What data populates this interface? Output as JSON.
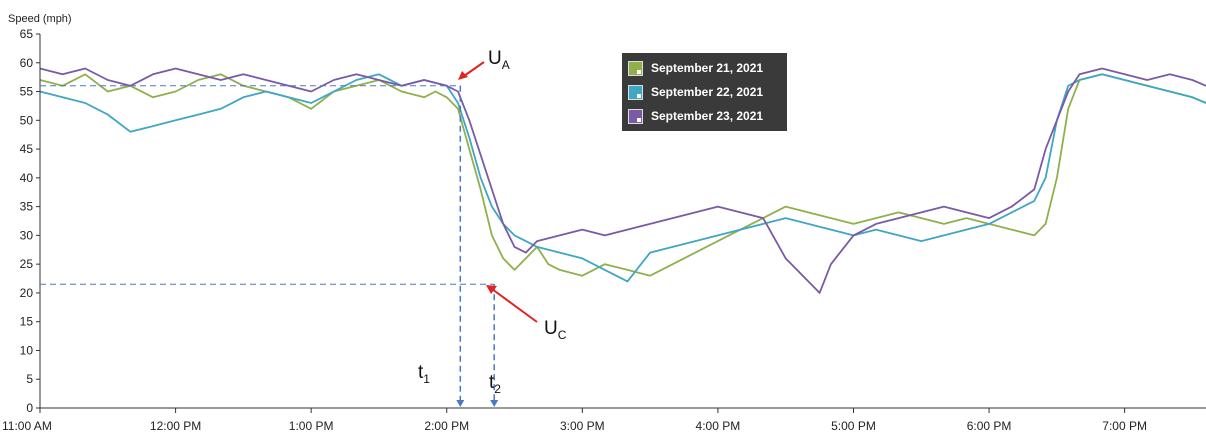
{
  "chart_data": {
    "type": "line",
    "ylabel": "Speed (mph)",
    "xlabel": "",
    "title": "",
    "ylim": [
      0,
      65
    ],
    "xlim": [
      "11:00 AM",
      "7:56 PM"
    ],
    "y_ticks": [
      "0",
      "5",
      "10",
      "15",
      "20",
      "25",
      "30",
      "35",
      "40",
      "45",
      "50",
      "55",
      "60",
      "65"
    ],
    "x_ticks": [
      {
        "label": "11:00 AM",
        "t": 0
      },
      {
        "label": "12:00 PM",
        "t": 60
      },
      {
        "label": "1:00 PM",
        "t": 120
      },
      {
        "label": "2:00 PM",
        "t": 180
      },
      {
        "label": "3:00 PM",
        "t": 240
      },
      {
        "label": "4:00 PM",
        "t": 300
      },
      {
        "label": "5:00 PM",
        "t": 360
      },
      {
        "label": "6:00 PM",
        "t": 420
      },
      {
        "label": "7:00 PM",
        "t": 480
      }
    ],
    "grid": false,
    "legend_position": "top-center",
    "series": [
      {
        "name": "September 21, 2021",
        "color": "#8fb04c",
        "points": [
          [
            0,
            57
          ],
          [
            10,
            56
          ],
          [
            20,
            58
          ],
          [
            30,
            55
          ],
          [
            40,
            56
          ],
          [
            50,
            54
          ],
          [
            60,
            55
          ],
          [
            70,
            57
          ],
          [
            80,
            58
          ],
          [
            90,
            56
          ],
          [
            100,
            55
          ],
          [
            110,
            54
          ],
          [
            120,
            52
          ],
          [
            130,
            55
          ],
          [
            140,
            56
          ],
          [
            150,
            57
          ],
          [
            160,
            55
          ],
          [
            170,
            54
          ],
          [
            175,
            55
          ],
          [
            180,
            54
          ],
          [
            185,
            52
          ],
          [
            190,
            45
          ],
          [
            195,
            38
          ],
          [
            200,
            30
          ],
          [
            205,
            26
          ],
          [
            210,
            24
          ],
          [
            215,
            26
          ],
          [
            220,
            28
          ],
          [
            225,
            25
          ],
          [
            230,
            24
          ],
          [
            240,
            23
          ],
          [
            250,
            25
          ],
          [
            260,
            24
          ],
          [
            270,
            23
          ],
          [
            280,
            25
          ],
          [
            290,
            27
          ],
          [
            300,
            29
          ],
          [
            310,
            31
          ],
          [
            320,
            33
          ],
          [
            330,
            35
          ],
          [
            340,
            34
          ],
          [
            350,
            33
          ],
          [
            360,
            32
          ],
          [
            370,
            33
          ],
          [
            380,
            34
          ],
          [
            390,
            33
          ],
          [
            400,
            32
          ],
          [
            410,
            33
          ],
          [
            420,
            32
          ],
          [
            430,
            31
          ],
          [
            440,
            30
          ],
          [
            445,
            32
          ],
          [
            450,
            40
          ],
          [
            455,
            52
          ],
          [
            460,
            57
          ],
          [
            470,
            58
          ],
          [
            480,
            57
          ],
          [
            490,
            56
          ],
          [
            500,
            55
          ],
          [
            510,
            54
          ],
          [
            516,
            53
          ]
        ]
      },
      {
        "name": "September 22, 2021",
        "color": "#3fa6c4",
        "points": [
          [
            0,
            55
          ],
          [
            10,
            54
          ],
          [
            20,
            53
          ],
          [
            30,
            51
          ],
          [
            40,
            48
          ],
          [
            50,
            49
          ],
          [
            60,
            50
          ],
          [
            70,
            51
          ],
          [
            80,
            52
          ],
          [
            90,
            54
          ],
          [
            100,
            55
          ],
          [
            110,
            54
          ],
          [
            120,
            53
          ],
          [
            130,
            55
          ],
          [
            140,
            57
          ],
          [
            150,
            58
          ],
          [
            160,
            56
          ],
          [
            170,
            57
          ],
          [
            180,
            56
          ],
          [
            185,
            53
          ],
          [
            190,
            47
          ],
          [
            195,
            40
          ],
          [
            200,
            35
          ],
          [
            205,
            32
          ],
          [
            210,
            30
          ],
          [
            215,
            29
          ],
          [
            220,
            28
          ],
          [
            230,
            27
          ],
          [
            240,
            26
          ],
          [
            250,
            24
          ],
          [
            260,
            22
          ],
          [
            270,
            27
          ],
          [
            280,
            28
          ],
          [
            290,
            29
          ],
          [
            300,
            30
          ],
          [
            310,
            31
          ],
          [
            320,
            32
          ],
          [
            330,
            33
          ],
          [
            340,
            32
          ],
          [
            350,
            31
          ],
          [
            360,
            30
          ],
          [
            370,
            31
          ],
          [
            380,
            30
          ],
          [
            390,
            29
          ],
          [
            400,
            30
          ],
          [
            410,
            31
          ],
          [
            420,
            32
          ],
          [
            430,
            34
          ],
          [
            440,
            36
          ],
          [
            445,
            40
          ],
          [
            450,
            50
          ],
          [
            455,
            56
          ],
          [
            460,
            57
          ],
          [
            470,
            58
          ],
          [
            480,
            57
          ],
          [
            490,
            56
          ],
          [
            500,
            55
          ],
          [
            510,
            54
          ],
          [
            516,
            53
          ]
        ]
      },
      {
        "name": "September 23, 2021",
        "color": "#7a5aa6",
        "points": [
          [
            0,
            59
          ],
          [
            10,
            58
          ],
          [
            20,
            59
          ],
          [
            30,
            57
          ],
          [
            40,
            56
          ],
          [
            50,
            58
          ],
          [
            60,
            59
          ],
          [
            70,
            58
          ],
          [
            80,
            57
          ],
          [
            90,
            58
          ],
          [
            100,
            57
          ],
          [
            110,
            56
          ],
          [
            120,
            55
          ],
          [
            130,
            57
          ],
          [
            140,
            58
          ],
          [
            150,
            57
          ],
          [
            160,
            56
          ],
          [
            170,
            57
          ],
          [
            180,
            56
          ],
          [
            185,
            55
          ],
          [
            190,
            50
          ],
          [
            195,
            44
          ],
          [
            200,
            38
          ],
          [
            205,
            32
          ],
          [
            210,
            28
          ],
          [
            215,
            27
          ],
          [
            220,
            29
          ],
          [
            230,
            30
          ],
          [
            240,
            31
          ],
          [
            250,
            30
          ],
          [
            260,
            31
          ],
          [
            270,
            32
          ],
          [
            280,
            33
          ],
          [
            290,
            34
          ],
          [
            300,
            35
          ],
          [
            310,
            34
          ],
          [
            320,
            33
          ],
          [
            330,
            26
          ],
          [
            340,
            22
          ],
          [
            345,
            20
          ],
          [
            350,
            25
          ],
          [
            360,
            30
          ],
          [
            370,
            32
          ],
          [
            380,
            33
          ],
          [
            390,
            34
          ],
          [
            400,
            35
          ],
          [
            410,
            34
          ],
          [
            420,
            33
          ],
          [
            430,
            35
          ],
          [
            440,
            38
          ],
          [
            445,
            45
          ],
          [
            450,
            50
          ],
          [
            455,
            55
          ],
          [
            460,
            58
          ],
          [
            470,
            59
          ],
          [
            480,
            58
          ],
          [
            490,
            57
          ],
          [
            500,
            58
          ],
          [
            510,
            57
          ],
          [
            516,
            56
          ]
        ]
      }
    ]
  },
  "annotations": {
    "ua_main": "U",
    "ua_sub": "A",
    "uc_main": "U",
    "uc_sub": "C",
    "t1_main": "t",
    "t1_sub": "1",
    "t2_main": "t",
    "t2_sub": "2",
    "ua_speed": 56,
    "uc_speed": 21.5,
    "t1_time": 186,
    "t2_time": 201
  }
}
